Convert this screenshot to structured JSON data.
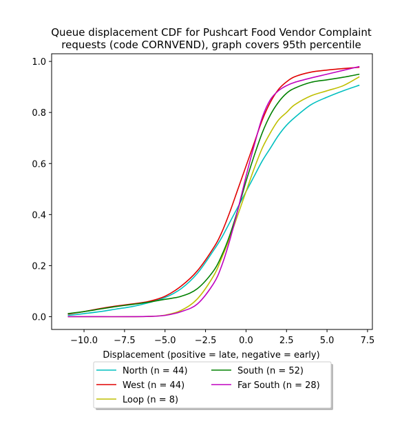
{
  "chart_data": {
    "type": "line",
    "title_line1": "Queue displacement CDF for Pushcart Food Vendor Complaint",
    "title_line2": "requests (code CORNVEND), graph covers 95th percentile",
    "xlabel": "Displacement (positive = late, negative = early)",
    "ylabel": "",
    "xlim": [
      -12.0,
      7.8
    ],
    "ylim": [
      -0.05,
      1.03
    ],
    "xticks": [
      -10.0,
      -7.5,
      -5.0,
      -2.5,
      0.0,
      2.5,
      5.0,
      7.5
    ],
    "xtick_labels": [
      "−10.0",
      "−7.5",
      "−5.0",
      "−2.5",
      "0.0",
      "2.5",
      "5.0",
      "7.5"
    ],
    "yticks": [
      0.0,
      0.2,
      0.4,
      0.6,
      0.8,
      1.0
    ],
    "ytick_labels": [
      "0.0",
      "0.2",
      "0.4",
      "0.6",
      "0.8",
      "1.0"
    ],
    "grid": false,
    "legend_placement": "below plot, two columns",
    "series": [
      {
        "name": "North (n = 44)",
        "color": "#00bfbf",
        "x": [
          -11,
          -10,
          -9,
          -8,
          -7,
          -6,
          -5,
          -4,
          -3,
          -2,
          -1.5,
          -1,
          -0.5,
          0,
          0.5,
          1,
          1.5,
          2,
          2.5,
          3,
          4,
          5,
          6,
          7
        ],
        "y": [
          0.005,
          0.012,
          0.02,
          0.03,
          0.04,
          0.055,
          0.075,
          0.11,
          0.17,
          0.26,
          0.31,
          0.37,
          0.43,
          0.49,
          0.55,
          0.61,
          0.66,
          0.71,
          0.75,
          0.78,
          0.83,
          0.86,
          0.885,
          0.907
        ]
      },
      {
        "name": "West (n = 44)",
        "color": "#e00000",
        "x": [
          -11,
          -10,
          -9,
          -8,
          -7,
          -6,
          -5,
          -4,
          -3,
          -2,
          -1.5,
          -1,
          -0.5,
          0,
          0.5,
          1,
          1.5,
          2,
          2.5,
          3,
          4,
          5,
          6,
          7
        ],
        "y": [
          0.01,
          0.02,
          0.032,
          0.042,
          0.05,
          0.06,
          0.08,
          0.12,
          0.18,
          0.27,
          0.33,
          0.41,
          0.5,
          0.59,
          0.68,
          0.77,
          0.84,
          0.89,
          0.92,
          0.94,
          0.958,
          0.966,
          0.972,
          0.977
        ]
      },
      {
        "name": "Loop (n = 8)",
        "color": "#bfbf00",
        "x": [
          -11,
          -9,
          -7,
          -6,
          -5,
          -4,
          -3,
          -2,
          -1.5,
          -1,
          -0.5,
          0,
          0.5,
          1,
          1.5,
          2,
          2.5,
          3,
          4,
          5,
          6,
          7
        ],
        "y": [
          0.0,
          0.0,
          0.0,
          0.001,
          0.006,
          0.025,
          0.07,
          0.16,
          0.23,
          0.31,
          0.4,
          0.49,
          0.58,
          0.66,
          0.72,
          0.77,
          0.8,
          0.83,
          0.865,
          0.885,
          0.905,
          0.94
        ]
      },
      {
        "name": "South (n = 52)",
        "color": "#008000",
        "x": [
          -11,
          -10,
          -9,
          -8,
          -7,
          -6,
          -5,
          -4,
          -3,
          -2,
          -1.5,
          -1,
          -0.5,
          0,
          0.5,
          1,
          1.5,
          2,
          2.5,
          3,
          4,
          5,
          6,
          7
        ],
        "y": [
          0.012,
          0.02,
          0.03,
          0.04,
          0.048,
          0.057,
          0.068,
          0.08,
          0.11,
          0.18,
          0.24,
          0.32,
          0.42,
          0.53,
          0.63,
          0.72,
          0.79,
          0.84,
          0.875,
          0.895,
          0.918,
          0.928,
          0.938,
          0.95
        ]
      },
      {
        "name": "Far South (n = 28)",
        "color": "#bf00bf",
        "x": [
          -11,
          -9,
          -7,
          -6,
          -5,
          -4,
          -3,
          -2,
          -1.5,
          -1,
          -0.5,
          0,
          0.5,
          1,
          1.5,
          2,
          2.5,
          3,
          4,
          5,
          6,
          7
        ],
        "y": [
          0.0,
          0.0,
          0.0,
          0.001,
          0.005,
          0.02,
          0.05,
          0.13,
          0.2,
          0.3,
          0.42,
          0.55,
          0.67,
          0.78,
          0.85,
          0.885,
          0.905,
          0.918,
          0.935,
          0.95,
          0.965,
          0.98
        ]
      }
    ]
  }
}
